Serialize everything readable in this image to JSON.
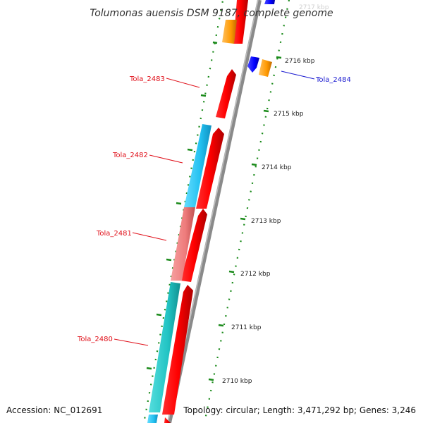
{
  "title": "Tolumonas auensis DSM 9187, complete genome",
  "footer": {
    "accession": "Accession: NC_012691",
    "topology": "Topology: circular; Length: 3,471,292 bp; Genes: 3,246"
  },
  "ticks": [
    {
      "label": "2717 kbp",
      "faded": true
    },
    {
      "label": "2716 kbp"
    },
    {
      "label": "2715 kbp"
    },
    {
      "label": "2714 kbp"
    },
    {
      "label": "2713 kbp"
    },
    {
      "label": "2712 kbp"
    },
    {
      "label": "2711 kbp"
    },
    {
      "label": "2710 kbp"
    }
  ],
  "gene_labels": [
    {
      "name": "Tola_2483",
      "color": "#e0101a"
    },
    {
      "name": "Tola_2484",
      "color": "#1a1ad0"
    },
    {
      "name": "Tola_2482",
      "color": "#e0101a"
    },
    {
      "name": "Tola_2481",
      "color": "#e0101a"
    },
    {
      "name": "Tola_2480",
      "color": "#e0101a"
    }
  ],
  "colors": {
    "backbone": "#888888",
    "forward_cds": "#ff0000",
    "reverse_cds": "#0000ff",
    "orange_feature": "#ff9900",
    "ruler": "#1a8a1a",
    "cyan": "#22ccff",
    "teal": "#22cccc",
    "salmon": "#f08080"
  }
}
